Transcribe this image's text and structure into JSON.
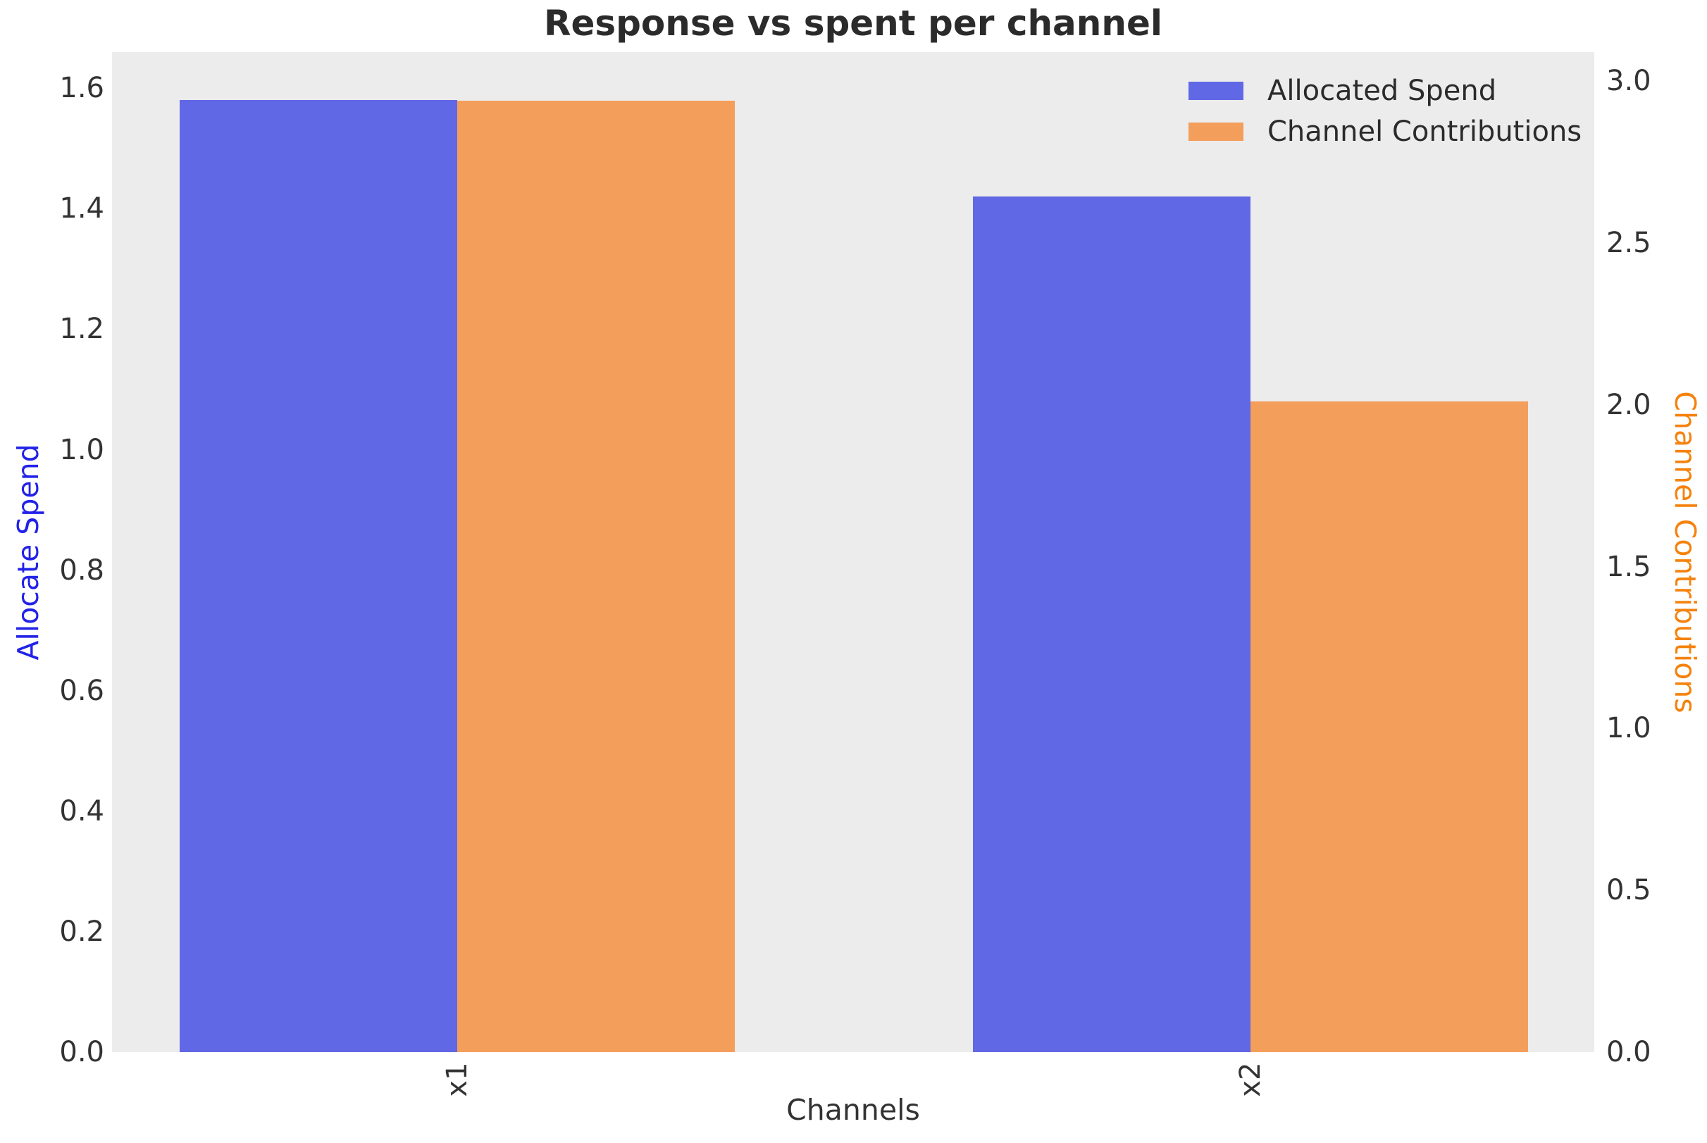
{
  "chart_data": {
    "type": "bar",
    "title": "Response vs spent per channel",
    "xlabel": "Channels",
    "ylabel_left": "Allocate Spend",
    "ylabel_right": "Channel Contributions",
    "categories": [
      "x1",
      "x2"
    ],
    "series": [
      {
        "name": "Allocated Spend",
        "axis": "left",
        "color": "#6168e5",
        "values": [
          1.58,
          1.42
        ]
      },
      {
        "name": "Channel Contributions",
        "axis": "right",
        "color": "#f49e5c",
        "values": [
          2.94,
          2.01
        ]
      }
    ],
    "left_axis": {
      "tick_labels": [
        "0.0",
        "0.2",
        "0.4",
        "0.6",
        "0.8",
        "1.0",
        "1.2",
        "1.4",
        "1.6"
      ],
      "tick_values": [
        0,
        0.2,
        0.4,
        0.6,
        0.8,
        1.0,
        1.2,
        1.4,
        1.6
      ],
      "range": [
        0,
        1.66
      ]
    },
    "right_axis": {
      "tick_labels": [
        "0.0",
        "0.5",
        "1.0",
        "1.5",
        "2.0",
        "2.5",
        "3.0"
      ],
      "tick_values": [
        0,
        0.5,
        1.0,
        1.5,
        2.0,
        2.5,
        3.0
      ],
      "range": [
        0,
        3.09
      ]
    },
    "grid": false,
    "legend_position": "upper right",
    "layout": {
      "group_centers_frac": [
        0.233,
        0.768
      ],
      "bar_width_frac": 0.1873
    },
    "colors": {
      "plot_background": "#ececec",
      "figure_background": "#ffffff",
      "title_text": "#2b2b2b",
      "tick_text": "#333333",
      "left_label_text": "#2222e8",
      "right_label_text": "#f5820d",
      "legend_text": "#2b2b2b"
    }
  }
}
